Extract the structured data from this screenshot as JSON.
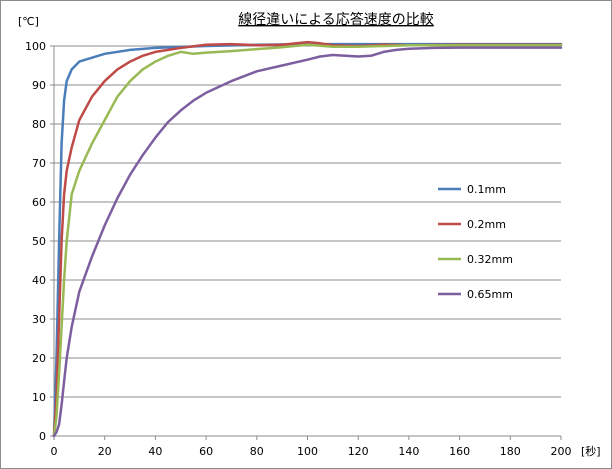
{
  "chart_data": {
    "type": "line",
    "title": "線径違いによる応答速度の比較",
    "xlabel": "[秒]",
    "ylabel": "[℃]",
    "xlim": [
      0,
      200
    ],
    "ylim": [
      0,
      100
    ],
    "x_ticks": [
      "0",
      "20",
      "40",
      "60",
      "80",
      "100",
      "120",
      "140",
      "160",
      "180",
      "200"
    ],
    "y_ticks": [
      "0",
      "10",
      "20",
      "30",
      "40",
      "50",
      "60",
      "70",
      "80",
      "90",
      "100"
    ],
    "grid": "horizontal",
    "legend": "right-middle",
    "series": [
      {
        "name": "0.1mm",
        "color": "#4a7ebb",
        "points": [
          [
            0,
            0
          ],
          [
            1,
            20
          ],
          [
            2,
            50
          ],
          [
            3,
            75
          ],
          [
            4,
            86
          ],
          [
            5,
            91
          ],
          [
            7,
            94
          ],
          [
            10,
            96
          ],
          [
            15,
            97
          ],
          [
            20,
            98
          ],
          [
            30,
            99
          ],
          [
            40,
            99.5
          ],
          [
            60,
            100
          ],
          [
            80,
            100.3
          ],
          [
            100,
            100.5
          ],
          [
            120,
            100.5
          ],
          [
            140,
            100.5
          ],
          [
            160,
            100.5
          ],
          [
            180,
            100.5
          ],
          [
            200,
            100.5
          ]
        ]
      },
      {
        "name": "0.2mm",
        "color": "#be4b48",
        "points": [
          [
            0,
            0
          ],
          [
            1,
            10
          ],
          [
            2,
            30
          ],
          [
            3,
            50
          ],
          [
            4,
            62
          ],
          [
            5,
            68
          ],
          [
            7,
            74
          ],
          [
            10,
            81
          ],
          [
            15,
            87
          ],
          [
            20,
            91
          ],
          [
            25,
            94
          ],
          [
            30,
            96
          ],
          [
            35,
            97.5
          ],
          [
            40,
            98.5
          ],
          [
            50,
            99.5
          ],
          [
            60,
            100.3
          ],
          [
            70,
            100.5
          ],
          [
            80,
            100.2
          ],
          [
            90,
            100.3
          ],
          [
            100,
            101
          ],
          [
            105,
            100.7
          ],
          [
            110,
            100.2
          ],
          [
            120,
            100
          ],
          [
            130,
            100.3
          ],
          [
            140,
            100.2
          ],
          [
            160,
            100.3
          ],
          [
            180,
            100.3
          ],
          [
            200,
            100.3
          ]
        ]
      },
      {
        "name": "0.32mm",
        "color": "#98b954",
        "points": [
          [
            0,
            0
          ],
          [
            1,
            5
          ],
          [
            2,
            16
          ],
          [
            3,
            28
          ],
          [
            4,
            40
          ],
          [
            5,
            50
          ],
          [
            7,
            62
          ],
          [
            10,
            68
          ],
          [
            15,
            75
          ],
          [
            20,
            81
          ],
          [
            25,
            87
          ],
          [
            30,
            91
          ],
          [
            35,
            94
          ],
          [
            40,
            96
          ],
          [
            45,
            97.5
          ],
          [
            50,
            98.5
          ],
          [
            55,
            98
          ],
          [
            60,
            98.3
          ],
          [
            70,
            98.7
          ],
          [
            80,
            99.2
          ],
          [
            90,
            99.7
          ],
          [
            100,
            100.3
          ],
          [
            110,
            99.8
          ],
          [
            120,
            99.8
          ],
          [
            140,
            100.2
          ],
          [
            160,
            100.2
          ],
          [
            180,
            100.2
          ],
          [
            200,
            100.2
          ]
        ]
      },
      {
        "name": "0.65mm",
        "color": "#7d5fa0",
        "points": [
          [
            0,
            0
          ],
          [
            1,
            1
          ],
          [
            2,
            3
          ],
          [
            3,
            8
          ],
          [
            4,
            14
          ],
          [
            5,
            20
          ],
          [
            7,
            28
          ],
          [
            10,
            37
          ],
          [
            15,
            46
          ],
          [
            20,
            54
          ],
          [
            25,
            61
          ],
          [
            30,
            67
          ],
          [
            35,
            72
          ],
          [
            40,
            76.5
          ],
          [
            45,
            80.5
          ],
          [
            50,
            83.5
          ],
          [
            55,
            86
          ],
          [
            60,
            88
          ],
          [
            65,
            89.5
          ],
          [
            70,
            91
          ],
          [
            80,
            93.5
          ],
          [
            90,
            95
          ],
          [
            100,
            96.5
          ],
          [
            105,
            97.3
          ],
          [
            110,
            97.7
          ],
          [
            120,
            97.3
          ],
          [
            125,
            97.5
          ],
          [
            130,
            98.5
          ],
          [
            135,
            99
          ],
          [
            140,
            99.3
          ],
          [
            150,
            99.5
          ],
          [
            160,
            99.6
          ],
          [
            180,
            99.6
          ],
          [
            200,
            99.6
          ]
        ]
      }
    ]
  }
}
